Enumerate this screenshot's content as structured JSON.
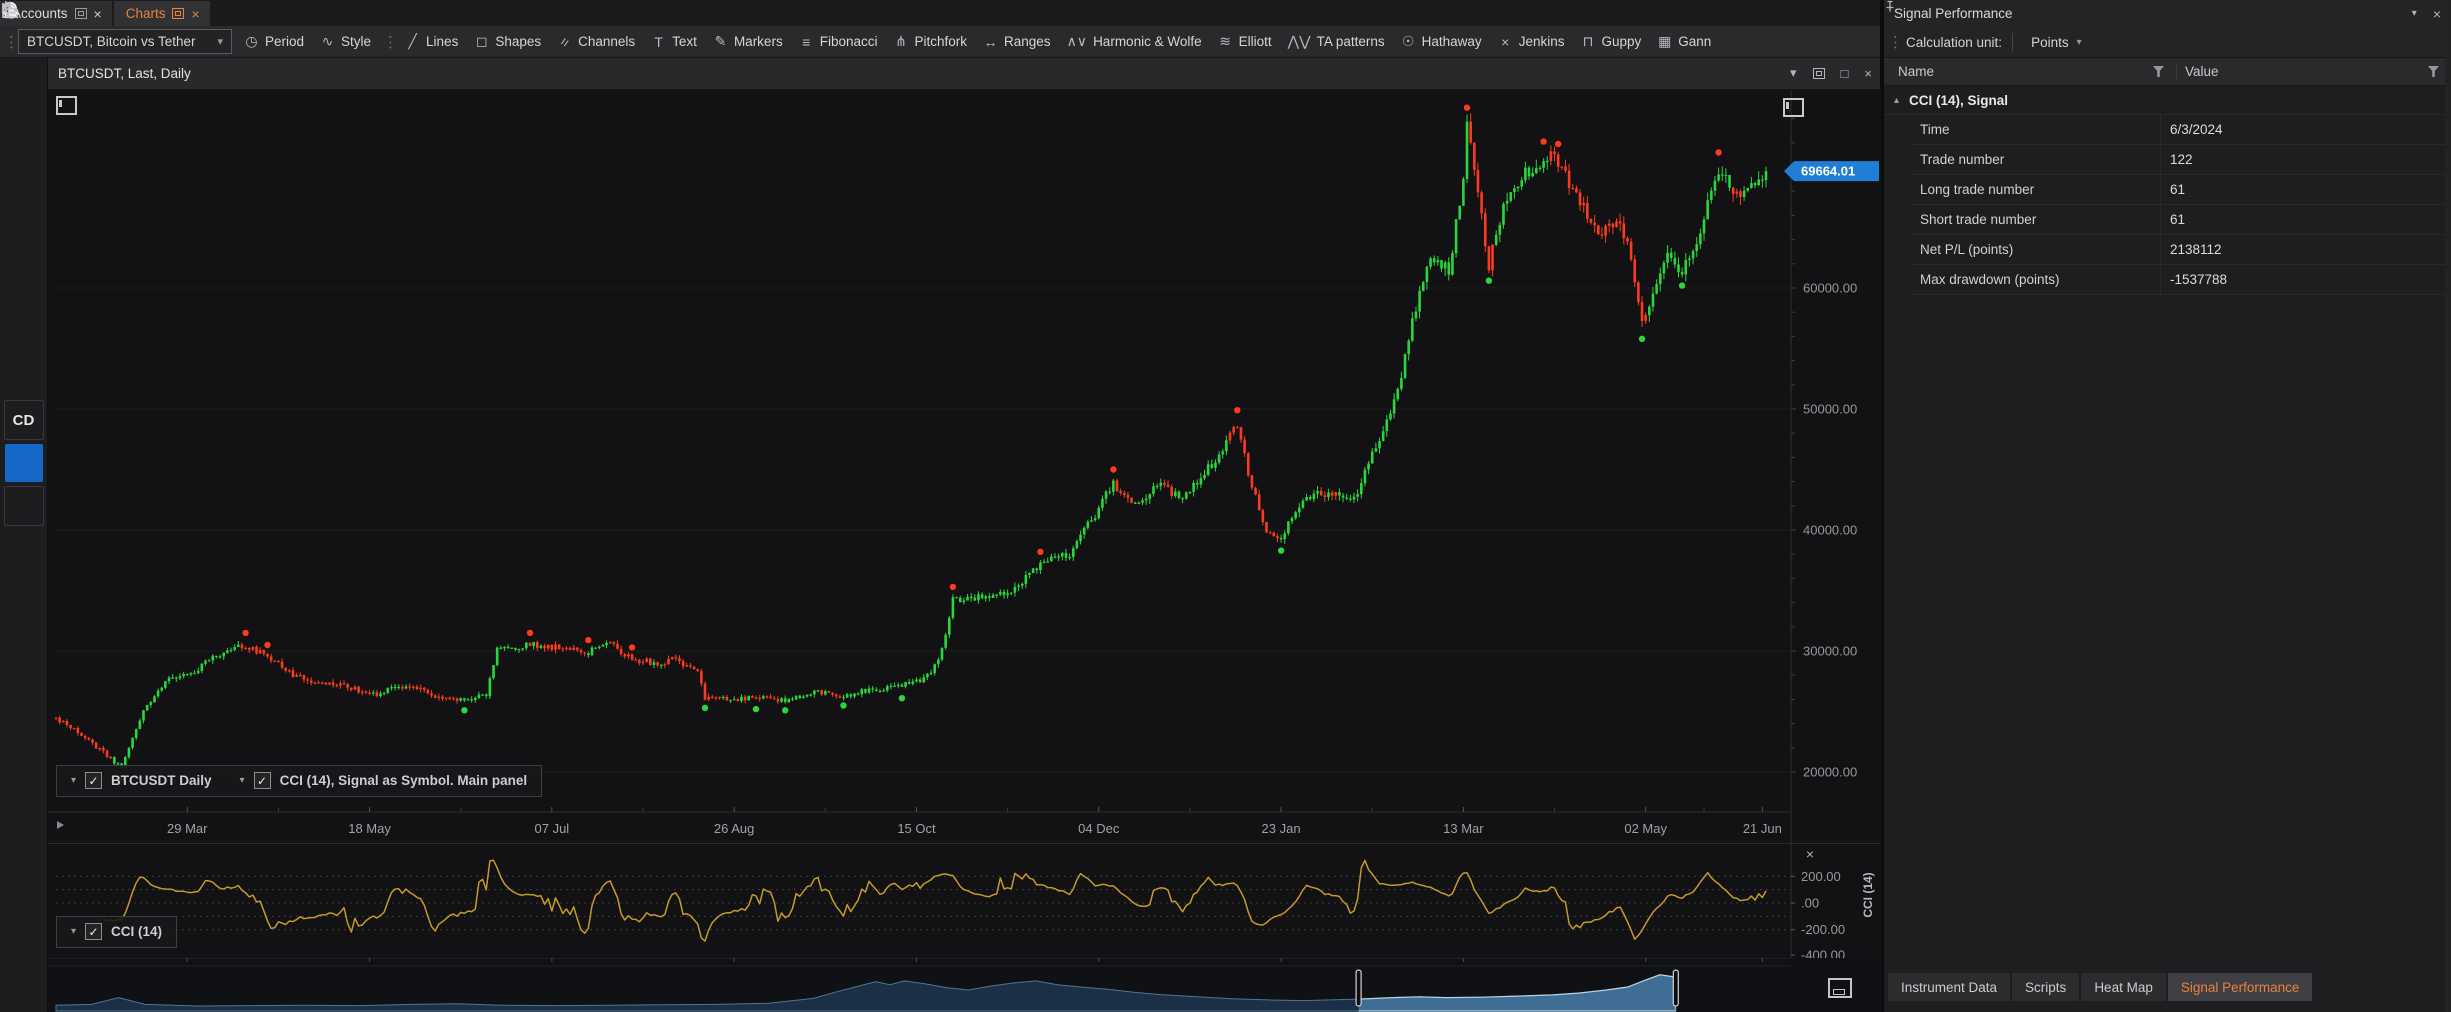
{
  "tabbar": {
    "tabs": [
      {
        "label": "Accounts",
        "active": false
      },
      {
        "label": "Charts",
        "active": true
      }
    ]
  },
  "toolbar": {
    "symbol_select": {
      "value": "BTCUSDT, Bitcoin vs Tether"
    },
    "buttons": [
      {
        "icon": "period-icon",
        "glyph": "◷",
        "label": "Period"
      },
      {
        "icon": "style-icon",
        "glyph": "∿",
        "label": "Style"
      }
    ],
    "tools": [
      {
        "icon": "lines-icon",
        "glyph": "╱",
        "label": "Lines"
      },
      {
        "icon": "shapes-icon",
        "glyph": "◻",
        "label": "Shapes"
      },
      {
        "icon": "channels-icon",
        "glyph": "=",
        "rotate": true,
        "label": "Channels"
      },
      {
        "icon": "text-icon",
        "glyph": "T",
        "label": "Text"
      },
      {
        "icon": "markers-icon",
        "glyph": "✎",
        "label": "Markers"
      },
      {
        "icon": "fibonacci-icon",
        "glyph": "≡",
        "label": "Fibonacci"
      },
      {
        "icon": "pitchfork-icon",
        "glyph": "⋔",
        "label": "Pitchfork"
      },
      {
        "icon": "ranges-icon",
        "glyph": "↔",
        "label": "Ranges"
      },
      {
        "icon": "harmonic-wolfe-icon",
        "glyph": "∧∨",
        "label": "Harmonic & Wolfe"
      },
      {
        "icon": "elliott-icon",
        "glyph": "≋",
        "label": "Elliott"
      },
      {
        "icon": "ta-patterns-icon",
        "glyph": "⋀⋁",
        "label": "TA patterns"
      },
      {
        "icon": "hathaway-icon",
        "glyph": "☉",
        "label": "Hathaway"
      },
      {
        "icon": "jenkins-icon",
        "glyph": "×",
        "label": "Jenkins"
      },
      {
        "icon": "guppy-icon",
        "glyph": "⊓",
        "label": "Guppy"
      },
      {
        "icon": "gann-icon",
        "glyph": "▦",
        "label": "Gann"
      }
    ]
  },
  "sidebar": {
    "items": [
      {
        "icon": "search-icon"
      },
      {
        "icon": "chart-frame-icon"
      },
      {
        "icon": "scroll-axis-icon"
      },
      {
        "icon": "pan-icon"
      },
      {
        "icon": "refresh-icon"
      },
      {
        "icon": "cursor-icon"
      },
      {
        "icon": "layers-icon"
      },
      {
        "icon": "trash-icon"
      },
      {
        "icon": "cd-button",
        "label": "CD",
        "boxed": true
      },
      {
        "icon": "tap-select-icon",
        "active": true
      },
      {
        "icon": "indicator-panel-icon",
        "boxed": true
      }
    ]
  },
  "chart": {
    "title": "BTCUSDT, Last, Daily",
    "legends_main": [
      {
        "label": "BTCUSDT Daily",
        "checked": true
      },
      {
        "label": "CCI (14), Signal as Symbol. Main panel",
        "checked": true
      }
    ],
    "legend_cci": [
      {
        "label": "CCI (14)",
        "checked": true
      }
    ],
    "cci_axis_title": "CCI (14)"
  },
  "chart_data": {
    "type": "candlestick+oscillator",
    "main": {
      "symbol": "BTCUSDT",
      "interval": "Daily",
      "candles": 470,
      "last_price": "69664.01",
      "last_price_value": 69664.01,
      "y_ticks": [
        {
          "label": "60000.00",
          "price": 60000
        },
        {
          "label": "50000.00",
          "price": 50000
        },
        {
          "label": "40000.00",
          "price": 40000
        },
        {
          "label": "30000.00",
          "price": 30000
        },
        {
          "label": "20000.00",
          "price": 20000
        }
      ],
      "x_ticks": [
        {
          "label": "29 Mar",
          "i": 36
        },
        {
          "label": "18 May",
          "i": 86
        },
        {
          "label": "07 Jul",
          "i": 136
        },
        {
          "label": "26 Aug",
          "i": 186
        },
        {
          "label": "15 Oct",
          "i": 236
        },
        {
          "label": "04 Dec",
          "i": 286
        },
        {
          "label": "23 Jan",
          "i": 336
        },
        {
          "label": "13 Mar",
          "i": 386
        },
        {
          "label": "02 May",
          "i": 436
        },
        {
          "label": "21 Jun",
          "i": 468
        }
      ],
      "waypoints": [
        [
          0,
          24500
        ],
        [
          6,
          23300
        ],
        [
          12,
          21900
        ],
        [
          18,
          20300
        ],
        [
          24,
          25000
        ],
        [
          30,
          27600
        ],
        [
          36,
          28000
        ],
        [
          44,
          29600
        ],
        [
          52,
          30500
        ],
        [
          58,
          29600
        ],
        [
          64,
          28200
        ],
        [
          72,
          27400
        ],
        [
          80,
          27000
        ],
        [
          88,
          26500
        ],
        [
          96,
          27200
        ],
        [
          104,
          26300
        ],
        [
          112,
          25900
        ],
        [
          118,
          26400
        ],
        [
          121,
          30200
        ],
        [
          130,
          30500
        ],
        [
          138,
          30300
        ],
        [
          146,
          29900
        ],
        [
          152,
          30600
        ],
        [
          158,
          29400
        ],
        [
          164,
          29000
        ],
        [
          170,
          29300
        ],
        [
          176,
          28100
        ],
        [
          178,
          26200
        ],
        [
          184,
          26000
        ],
        [
          192,
          26100
        ],
        [
          200,
          25900
        ],
        [
          208,
          26600
        ],
        [
          216,
          26300
        ],
        [
          224,
          26900
        ],
        [
          232,
          27100
        ],
        [
          240,
          28000
        ],
        [
          243,
          30000
        ],
        [
          246,
          34200
        ],
        [
          254,
          34500
        ],
        [
          262,
          35000
        ],
        [
          270,
          37200
        ],
        [
          278,
          38000
        ],
        [
          284,
          40800
        ],
        [
          290,
          43900
        ],
        [
          296,
          42000
        ],
        [
          302,
          43800
        ],
        [
          308,
          42600
        ],
        [
          314,
          44200
        ],
        [
          320,
          46800
        ],
        [
          324,
          48800
        ],
        [
          328,
          43500
        ],
        [
          332,
          40100
        ],
        [
          336,
          39300
        ],
        [
          342,
          42800
        ],
        [
          350,
          43100
        ],
        [
          356,
          42500
        ],
        [
          362,
          47000
        ],
        [
          368,
          51500
        ],
        [
          372,
          57000
        ],
        [
          376,
          62300
        ],
        [
          382,
          61500
        ],
        [
          386,
          69000
        ],
        [
          387,
          73500
        ],
        [
          390,
          67500
        ],
        [
          393,
          61800
        ],
        [
          398,
          67800
        ],
        [
          404,
          69800
        ],
        [
          408,
          70800
        ],
        [
          412,
          70600
        ],
        [
          416,
          68300
        ],
        [
          420,
          66000
        ],
        [
          424,
          64500
        ],
        [
          428,
          65800
        ],
        [
          432,
          62800
        ],
        [
          435,
          57200
        ],
        [
          438,
          59000
        ],
        [
          442,
          62500
        ],
        [
          446,
          61500
        ],
        [
          450,
          63900
        ],
        [
          453,
          66800
        ],
        [
          456,
          69900
        ],
        [
          459,
          68800
        ],
        [
          462,
          67300
        ],
        [
          465,
          69200
        ],
        [
          467,
          68500
        ],
        [
          469,
          69664
        ]
      ],
      "markers": {
        "sell": [
          [
            52,
            31500
          ],
          [
            58,
            30500
          ],
          [
            130,
            31500
          ],
          [
            146,
            30900
          ],
          [
            158,
            30300
          ],
          [
            246,
            35300
          ],
          [
            270,
            38200
          ],
          [
            290,
            45000
          ],
          [
            324,
            49900
          ],
          [
            387,
            74900
          ],
          [
            408,
            72100
          ],
          [
            412,
            71900
          ],
          [
            456,
            71200
          ]
        ],
        "buy": [
          [
            18,
            19500
          ],
          [
            112,
            25100
          ],
          [
            178,
            25300
          ],
          [
            192,
            25200
          ],
          [
            200,
            25100
          ],
          [
            216,
            25500
          ],
          [
            232,
            26100
          ],
          [
            336,
            38300
          ],
          [
            393,
            60600
          ],
          [
            435,
            55800
          ],
          [
            446,
            60200
          ]
        ]
      },
      "colors": {
        "up": "#2bd53c",
        "down": "#fb3b1e",
        "badge": "#1f7fd4"
      }
    },
    "cci": {
      "title": "CCI (14)",
      "period": 14,
      "line_color": "#c49a2a",
      "y_ticks": [
        {
          "label": "200.00",
          "v": 200
        },
        {
          "label": ".00",
          "v": 0
        },
        {
          "label": "-200.00",
          "v": -200
        },
        {
          "label": "-400.00",
          "v": -400
        }
      ],
      "gridlines": [
        200,
        100,
        0,
        -100,
        -200
      ]
    },
    "navigator": {
      "selection": [
        0.731,
        0.909
      ],
      "points": [
        [
          0,
          0.1
        ],
        [
          0.02,
          0.12
        ],
        [
          0.035,
          0.3
        ],
        [
          0.05,
          0.12
        ],
        [
          0.08,
          0.08
        ],
        [
          0.11,
          0.09
        ],
        [
          0.14,
          0.1
        ],
        [
          0.17,
          0.09
        ],
        [
          0.2,
          0.12
        ],
        [
          0.225,
          0.14
        ],
        [
          0.25,
          0.1
        ],
        [
          0.28,
          0.09
        ],
        [
          0.31,
          0.1
        ],
        [
          0.34,
          0.11
        ],
        [
          0.37,
          0.12
        ],
        [
          0.4,
          0.15
        ],
        [
          0.425,
          0.28
        ],
        [
          0.44,
          0.48
        ],
        [
          0.452,
          0.62
        ],
        [
          0.46,
          0.72
        ],
        [
          0.468,
          0.64
        ],
        [
          0.476,
          0.74
        ],
        [
          0.488,
          0.66
        ],
        [
          0.5,
          0.56
        ],
        [
          0.512,
          0.5
        ],
        [
          0.524,
          0.6
        ],
        [
          0.536,
          0.68
        ],
        [
          0.55,
          0.74
        ],
        [
          0.562,
          0.64
        ],
        [
          0.575,
          0.58
        ],
        [
          0.59,
          0.52
        ],
        [
          0.605,
          0.44
        ],
        [
          0.62,
          0.38
        ],
        [
          0.64,
          0.32
        ],
        [
          0.66,
          0.27
        ],
        [
          0.68,
          0.24
        ],
        [
          0.7,
          0.22
        ],
        [
          0.715,
          0.24
        ],
        [
          0.731,
          0.26
        ],
        [
          0.75,
          0.3
        ],
        [
          0.765,
          0.32
        ],
        [
          0.78,
          0.3
        ],
        [
          0.8,
          0.31
        ],
        [
          0.82,
          0.34
        ],
        [
          0.84,
          0.37
        ],
        [
          0.855,
          0.42
        ],
        [
          0.87,
          0.5
        ],
        [
          0.882,
          0.58
        ],
        [
          0.892,
          0.76
        ],
        [
          0.9,
          0.9
        ],
        [
          0.909,
          0.84
        ]
      ]
    }
  },
  "panel": {
    "title": "Signal Performance",
    "calc_unit_label": "Calculation unit:",
    "calc_unit_value": "Points",
    "columns": [
      "Name",
      "Value"
    ],
    "group": "CCI (14), Signal",
    "rows": [
      {
        "name": "Time",
        "value": "6/3/2024"
      },
      {
        "name": "Trade number",
        "value": "122"
      },
      {
        "name": "Long trade number",
        "value": "61"
      },
      {
        "name": "Short trade number",
        "value": "61"
      },
      {
        "name": "Net P/L (points)",
        "value": "2138112"
      },
      {
        "name": "Max drawdown (points)",
        "value": "-1537788"
      }
    ],
    "bottom_tabs": [
      {
        "label": "Instrument Data",
        "active": false
      },
      {
        "label": "Scripts",
        "active": false
      },
      {
        "label": "Heat Map",
        "active": false
      },
      {
        "label": "Signal Performance",
        "active": true
      }
    ]
  },
  "colors": {
    "accent_orange": "#e8823c",
    "candle_up": "#2bd53c",
    "candle_down": "#fb3b1e",
    "badge_blue": "#1f7fd4",
    "cci_line": "#c49a2a",
    "nav_selected": "#3f6d94"
  }
}
